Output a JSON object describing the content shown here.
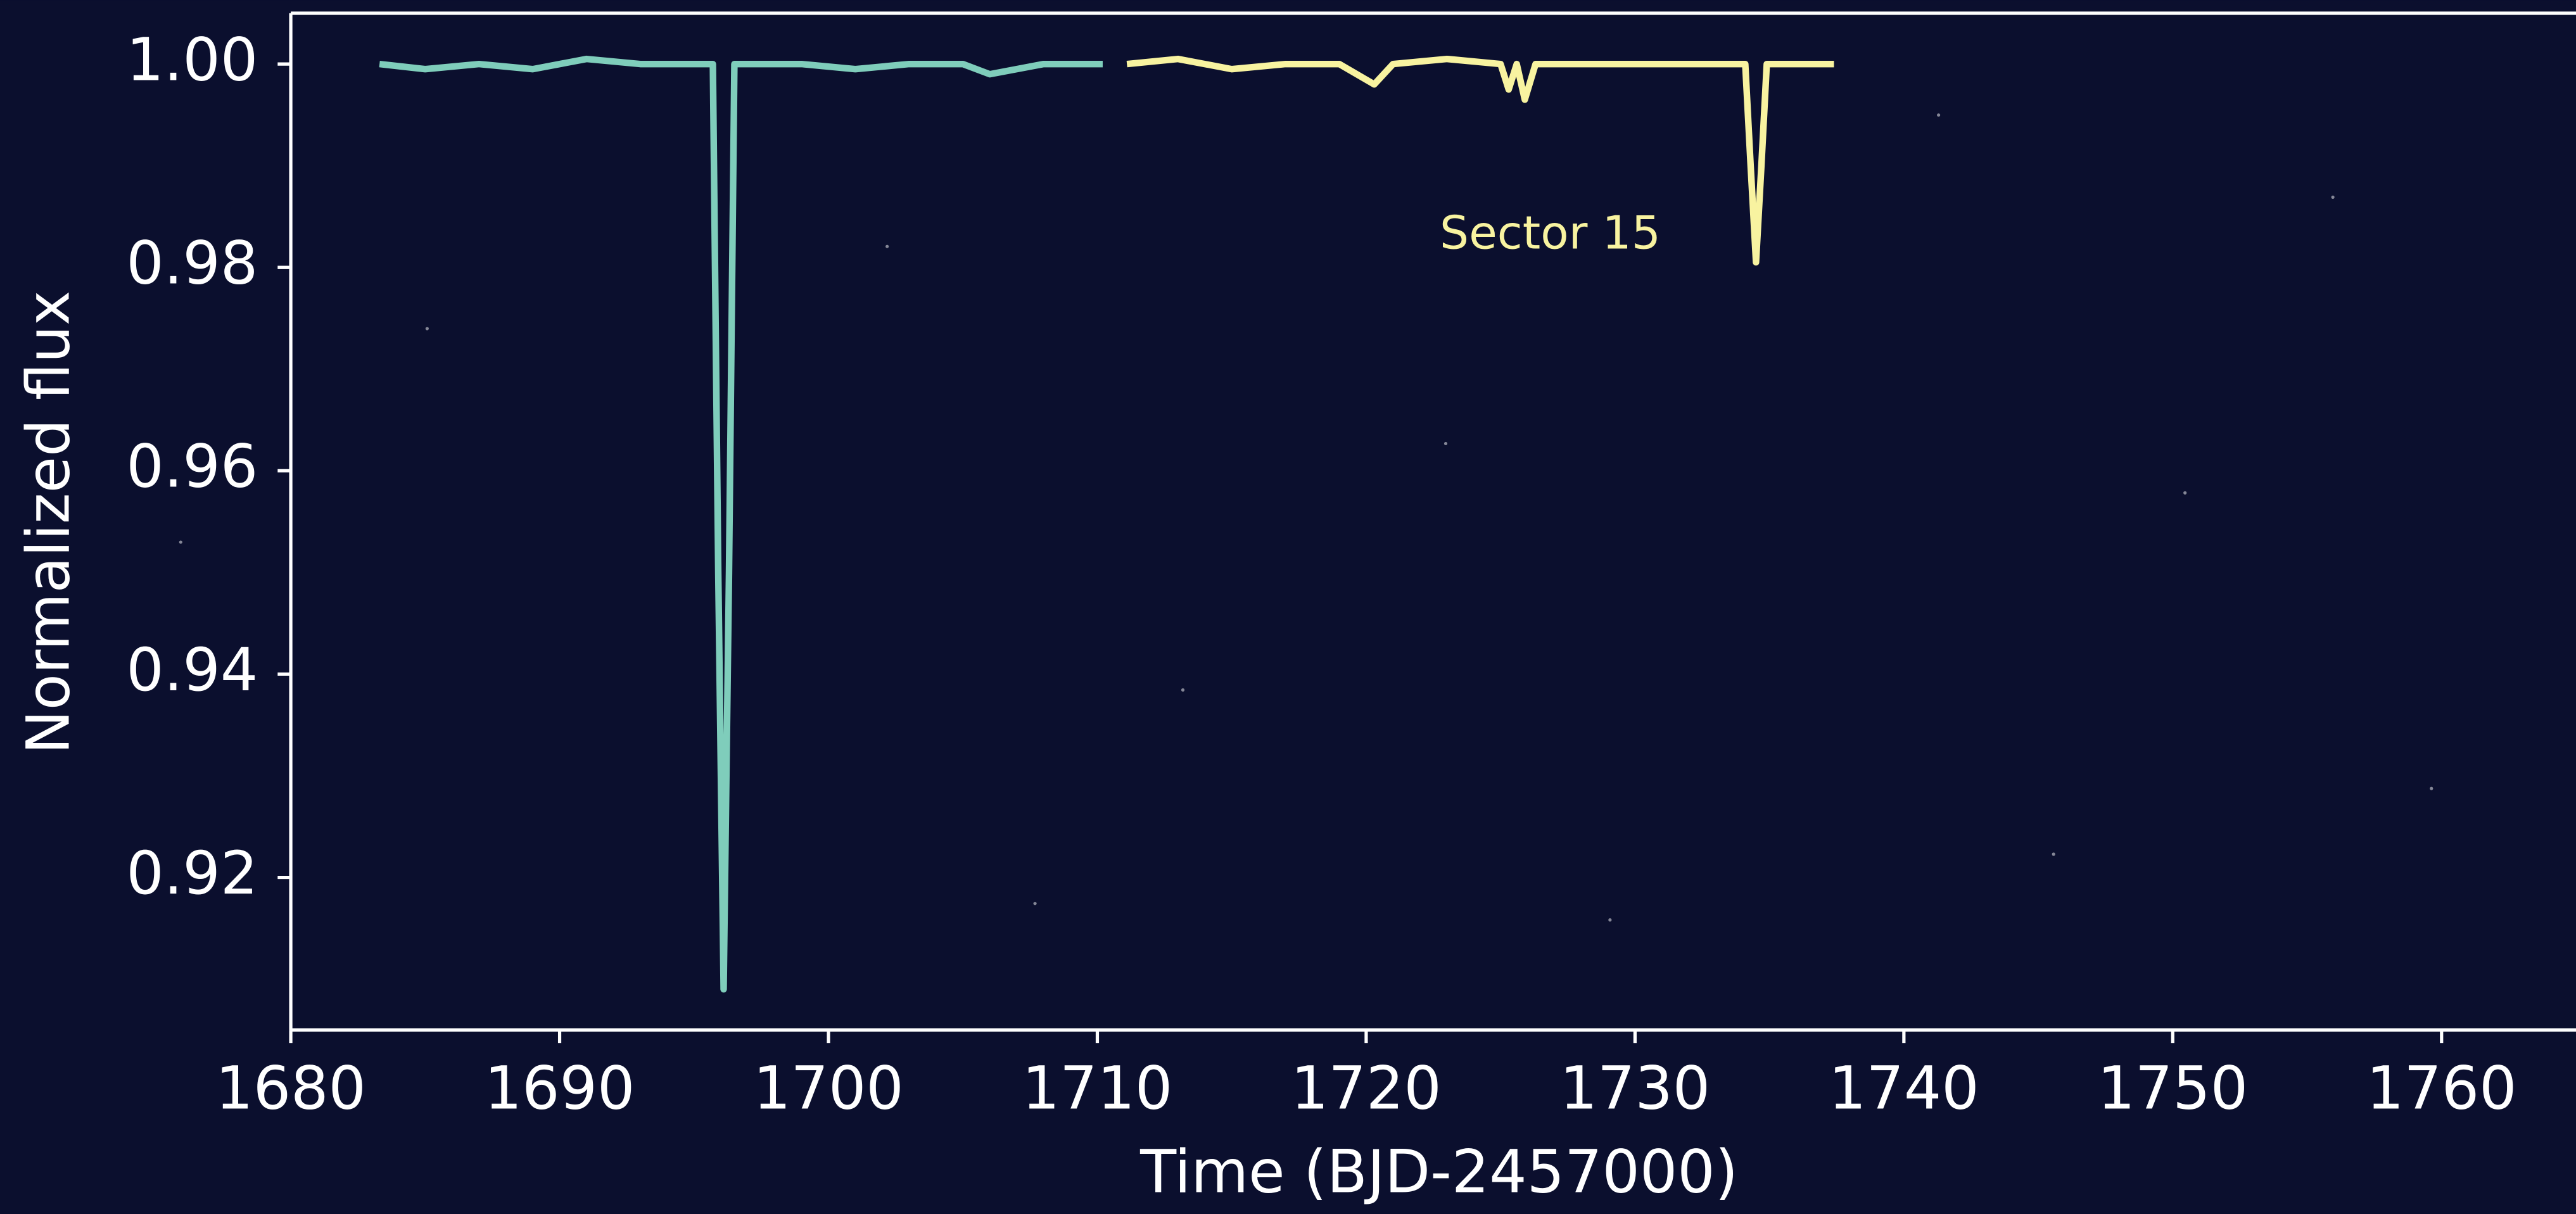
{
  "chart_data": {
    "type": "line",
    "xlabel": "Time (BJD-2457000)",
    "ylabel": "Normalized flux",
    "annotation": "Sector 15",
    "xlim": [
      1680,
      1765
    ],
    "ylim": [
      0.905,
      1.005
    ],
    "xticks": [
      1680,
      1690,
      1700,
      1710,
      1720,
      1730,
      1740,
      1750,
      1760
    ],
    "yticks": [
      0.92,
      0.94,
      0.96,
      0.98,
      {
        "value": 1,
        "label": "1.00"
      }
    ],
    "grid": false,
    "series": [
      {
        "color": "#7fcdbb",
        "x": [
          1683.3,
          1685,
          1687,
          1689,
          1691,
          1693,
          1695,
          1695.7,
          1695.9,
          1696.1,
          1696.3,
          1696.5,
          1697,
          1699,
          1701,
          1703,
          1705,
          1706,
          1708,
          1710.2
        ],
        "values": [
          1.0,
          0.9995,
          1.0,
          0.9995,
          1.0005,
          1.0,
          1.0,
          1.0,
          0.95,
          0.909,
          0.95,
          1.0,
          1.0,
          1.0,
          0.9995,
          1.0,
          1.0,
          0.999,
          1.0,
          1.0
        ]
      },
      {
        "color": "#f8f3a0",
        "x": [
          1711.1,
          1713,
          1715,
          1717,
          1719,
          1720.3,
          1721,
          1723,
          1725,
          1725.3,
          1725.6,
          1725.9,
          1726.3,
          1728,
          1730,
          1732,
          1734.1,
          1734.3,
          1734.5,
          1734.7,
          1734.9,
          1736,
          1737.4
        ],
        "values": [
          1.0,
          1.0005,
          0.9995,
          1.0,
          1.0,
          0.998,
          1.0,
          1.0005,
          1.0,
          0.9975,
          1.0,
          0.9965,
          1.0,
          1.0,
          1.0,
          1.0,
          1.0,
          0.99,
          0.9805,
          0.99,
          1.0,
          1.0,
          1.0
        ]
      }
    ]
  }
}
